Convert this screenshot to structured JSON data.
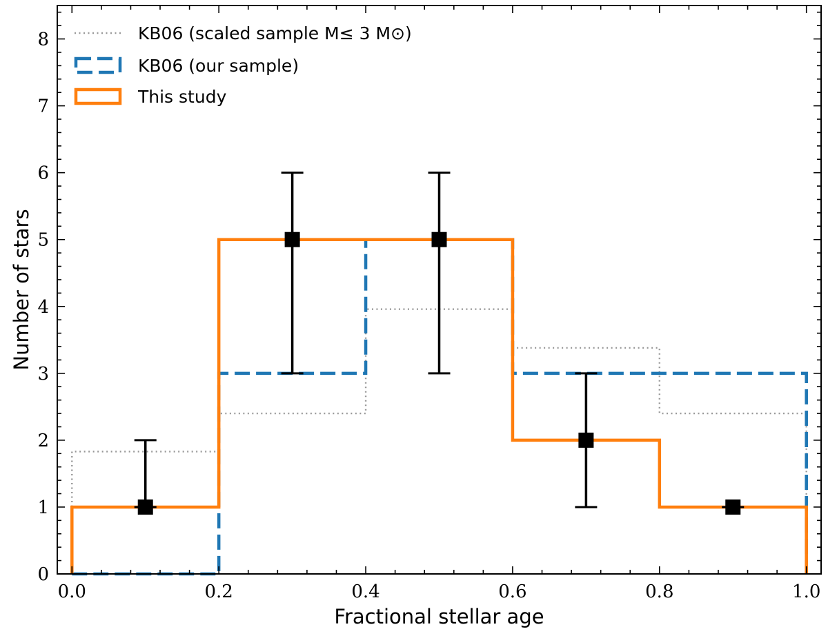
{
  "chart_data": {
    "type": "histogram",
    "xlabel": "Fractional stellar age",
    "ylabel": "Number of stars",
    "xlim": [
      -0.02,
      1.02
    ],
    "ylim": [
      0,
      8.5
    ],
    "xticks": [
      0.0,
      0.2,
      0.4,
      0.6,
      0.8,
      1.0
    ],
    "xtick_labels": [
      "0.0",
      "0.2",
      "0.4",
      "0.6",
      "0.8",
      "1.0"
    ],
    "yticks": [
      0,
      1,
      2,
      3,
      4,
      5,
      6,
      7,
      8
    ],
    "ytick_labels": [
      "0",
      "1",
      "2",
      "3",
      "4",
      "5",
      "6",
      "7",
      "8"
    ],
    "bin_edges": [
      0.0,
      0.2,
      0.4,
      0.6,
      0.8,
      1.0
    ],
    "series": [
      {
        "name": "KB06 (scaled sample M≤ 3 M⊙)",
        "style": "dotted",
        "color": "#999999",
        "values": [
          1.83,
          2.4,
          3.96,
          3.38,
          2.4
        ]
      },
      {
        "name": "KB06 (our sample)",
        "style": "dashed",
        "color": "#1f77b4",
        "values": [
          0,
          3,
          5,
          3,
          3
        ]
      },
      {
        "name": "This study",
        "style": "solid",
        "color": "#ff7f0e",
        "values": [
          1,
          5,
          5,
          2,
          1
        ]
      }
    ],
    "points": {
      "x": [
        0.1,
        0.3,
        0.5,
        0.7,
        0.9
      ],
      "y": [
        1,
        5,
        5,
        2,
        1
      ],
      "err_low": [
        1,
        3,
        3,
        1,
        1
      ],
      "err_high": [
        2,
        6,
        6,
        3,
        1
      ],
      "color": "#000000"
    },
    "legend": {
      "placement": "top-left",
      "labels": [
        "KB06 (scaled sample M≤ 3 M⊙)",
        "KB06 (our sample)",
        "This study"
      ]
    }
  }
}
